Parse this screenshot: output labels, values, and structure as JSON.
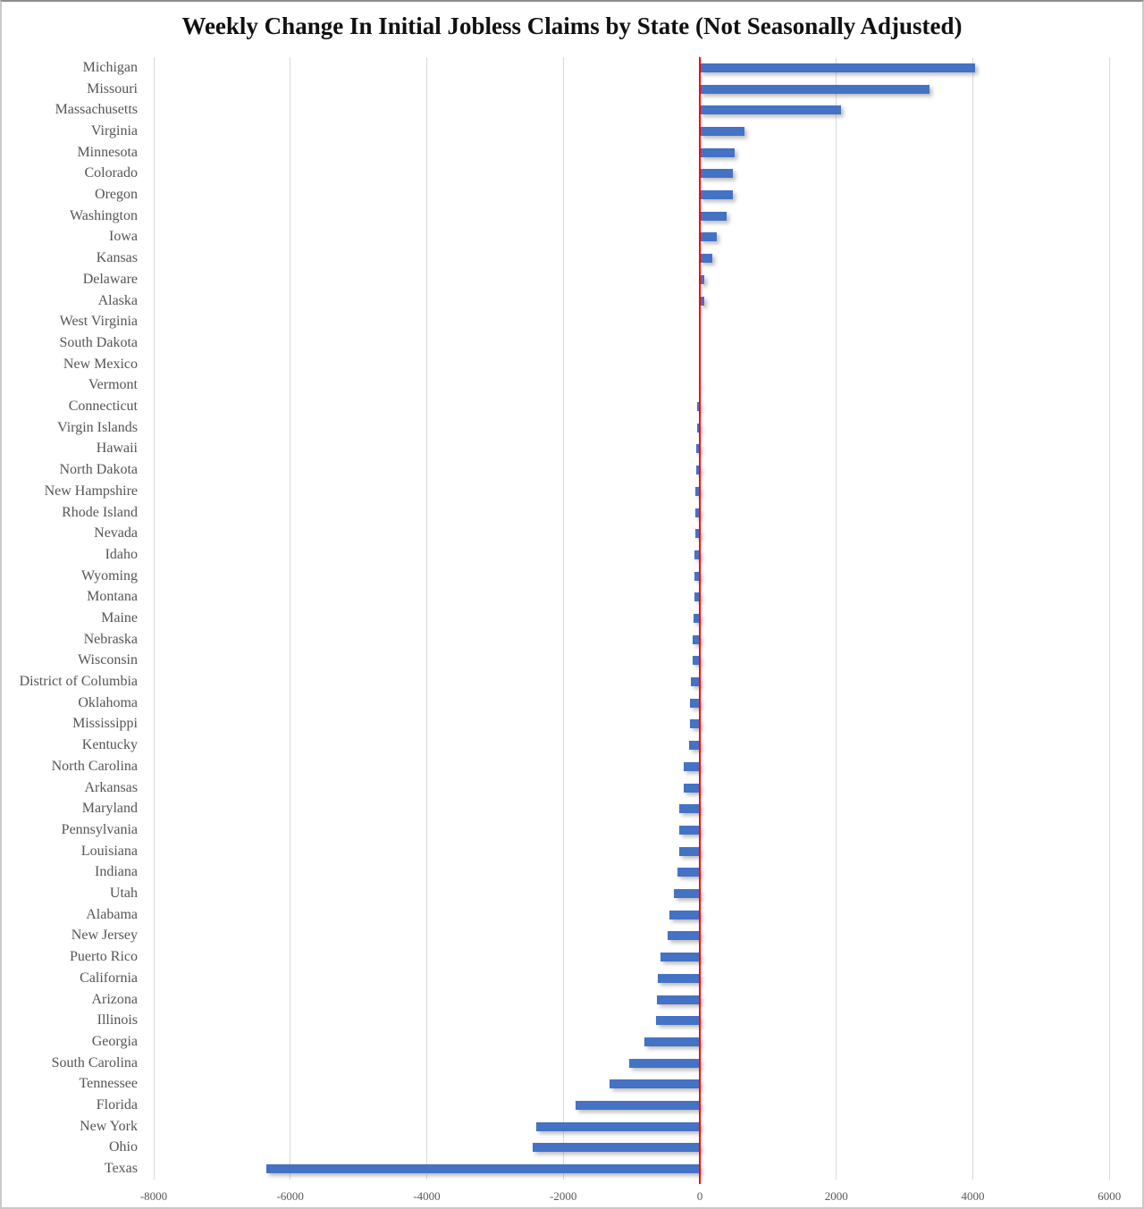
{
  "chart_data": {
    "type": "bar",
    "orientation": "horizontal",
    "title": "Weekly Change In Initial Jobless Claims by State (Not Seasonally Adjusted)",
    "categories": [
      "Michigan",
      "Missouri",
      "Massachusetts",
      "Virginia",
      "Minnesota",
      "Colorado",
      "Oregon",
      "Washington",
      "Iowa",
      "Kansas",
      "Delaware",
      "Alaska",
      "West Virginia",
      "South Dakota",
      "New Mexico",
      "Vermont",
      "Connecticut",
      "Virgin Islands",
      "Hawaii",
      "North Dakota",
      "New Hampshire",
      "Rhode Island",
      "Nevada",
      "Idaho",
      "Wyoming",
      "Montana",
      "Maine",
      "Nebraska",
      "Wisconsin",
      "District of Columbia",
      "Oklahoma",
      "Mississippi",
      "Kentucky",
      "North Carolina",
      "Arkansas",
      "Maryland",
      "Pennsylvania",
      "Louisiana",
      "Indiana",
      "Utah",
      "Alabama",
      "New Jersey",
      "Puerto Rico",
      "California",
      "Arizona",
      "Illinois",
      "Georgia",
      "South Carolina",
      "Tennessee",
      "Florida",
      "New York",
      "Ohio",
      "Texas"
    ],
    "values": [
      4030,
      3360,
      2070,
      650,
      510,
      490,
      480,
      390,
      250,
      185,
      70,
      60,
      0,
      0,
      -5,
      -10,
      -40,
      -45,
      -50,
      -55,
      -60,
      -65,
      -70,
      -75,
      -80,
      -85,
      -90,
      -100,
      -110,
      -135,
      -145,
      -150,
      -155,
      -230,
      -240,
      -295,
      -300,
      -305,
      -325,
      -380,
      -445,
      -470,
      -570,
      -615,
      -630,
      -640,
      -810,
      -1030,
      -1320,
      -1820,
      -2400,
      -2450,
      -6350
    ],
    "x_ticks": [
      -8000,
      -6000,
      -4000,
      -2000,
      0,
      2000,
      4000,
      6000
    ],
    "xlim": [
      -8000,
      6000
    ],
    "xlabel": "",
    "ylabel": "",
    "legend": "none",
    "grid": "vertical-gridlines",
    "zero_line_color": "#fe0000",
    "bar_color": "#4472c4",
    "gridline_color": "#d9d9d9",
    "label_color": "#595959"
  }
}
